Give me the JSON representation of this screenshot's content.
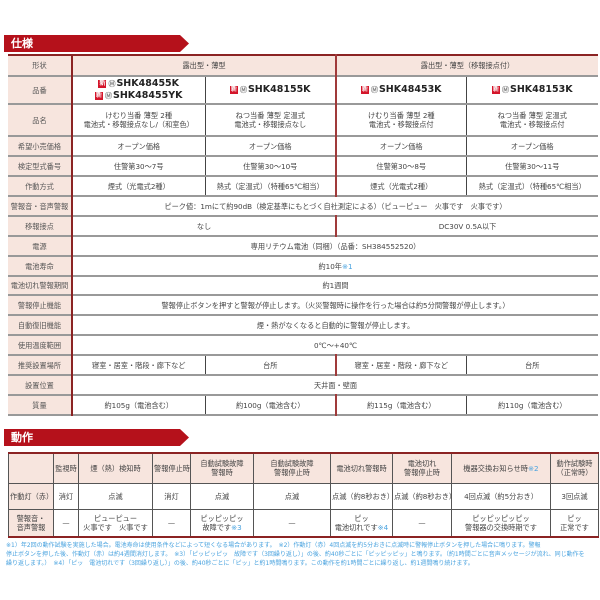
{
  "spec": {
    "title": "仕様",
    "badge": "新",
    "mark": "Ⓜ",
    "rows": [
      {
        "label": "形状",
        "hdr": true,
        "cells": [
          {
            "lines": [
              "露出型・薄型"
            ],
            "span": 2
          },
          {
            "lines": [
              "露出型・薄型（移報接点付）"
            ],
            "span": 2
          }
        ]
      },
      {
        "label": "品番",
        "model": true,
        "cells": [
          {
            "lines": [
              "SHK48455K",
              "SHK48455YK"
            ]
          },
          {
            "lines": [
              "SHK48155K"
            ]
          },
          {
            "lines": [
              "SHK48453K"
            ]
          },
          {
            "lines": [
              "SHK48153K"
            ]
          }
        ]
      },
      {
        "label": "品名",
        "cells": [
          {
            "lines": [
              "けむり当番 薄型 2種",
              "電池式・移報接点なし/（和室色）"
            ]
          },
          {
            "lines": [
              "ねつ当番 薄型 定温式",
              "電池式・移報接点なし"
            ]
          },
          {
            "lines": [
              "けむり当番 薄型 2種",
              "電池式・移報接点付"
            ]
          },
          {
            "lines": [
              "ねつ当番 薄型 定温式",
              "電池式・移報接点付"
            ]
          }
        ]
      },
      {
        "label": "希望小売価格",
        "cells": [
          {
            "lines": [
              "オープン価格"
            ]
          },
          {
            "lines": [
              "オープン価格"
            ]
          },
          {
            "lines": [
              "オープン価格"
            ]
          },
          {
            "lines": [
              "オープン価格"
            ]
          }
        ]
      },
      {
        "label": "検定型式番号",
        "cells": [
          {
            "lines": [
              "住警第30～7号"
            ]
          },
          {
            "lines": [
              "住警第30～10号"
            ]
          },
          {
            "lines": [
              "住警第30～8号"
            ]
          },
          {
            "lines": [
              "住警第30～11号"
            ]
          }
        ]
      },
      {
        "label": "作動方式",
        "cells": [
          {
            "lines": [
              "煙式（光電式2種）"
            ]
          },
          {
            "lines": [
              "熱式（定温式）（特種65℃相当）"
            ]
          },
          {
            "lines": [
              "煙式（光電式2種）"
            ]
          },
          {
            "lines": [
              "熱式（定温式）（特種65℃相当）"
            ]
          }
        ]
      },
      {
        "label": "警報音・音声警報",
        "cells": [
          {
            "lines": [
              "ピーク値：1mにて約90dB（検定基準にもとづく自社測定による）（ピューピュー　火事です　火事です）"
            ],
            "span": 4
          }
        ]
      },
      {
        "label": "移報接点",
        "cells": [
          {
            "lines": [
              "なし"
            ],
            "span": 2
          },
          {
            "lines": [
              "DC30V 0.5A以下"
            ],
            "span": 2
          }
        ]
      },
      {
        "label": "電源",
        "cells": [
          {
            "lines": [
              "専用リチウム電池（同梱）（品番：SH384552520）"
            ],
            "span": 4
          }
        ]
      },
      {
        "label": "電池寿命",
        "cells": [
          {
            "lines": [
              "約10年"
            ],
            "note": "※1",
            "span": 4
          }
        ]
      },
      {
        "label": "電池切れ警報期間",
        "cells": [
          {
            "lines": [
              "約1週間"
            ],
            "span": 4
          }
        ]
      },
      {
        "label": "警報停止機能",
        "cells": [
          {
            "lines": [
              "警報停止ボタンを押すと警報が停止します。（火災警報時に操作を行った場合は約5分間警報が停止します。）"
            ],
            "span": 4
          }
        ]
      },
      {
        "label": "自動復旧機能",
        "cells": [
          {
            "lines": [
              "煙・熱がなくなると自動的に警報が停止します。"
            ],
            "span": 4
          }
        ]
      },
      {
        "label": "使用温度範囲",
        "cells": [
          {
            "lines": [
              "0℃～+40℃"
            ],
            "span": 4
          }
        ]
      },
      {
        "label": "推奨設置場所",
        "cells": [
          {
            "lines": [
              "寝室・居室・階段・廊下など"
            ]
          },
          {
            "lines": [
              "台所"
            ]
          },
          {
            "lines": [
              "寝室・居室・階段・廊下など"
            ]
          },
          {
            "lines": [
              "台所"
            ]
          }
        ]
      },
      {
        "label": "設置位置",
        "cells": [
          {
            "lines": [
              "天井面・壁面"
            ],
            "span": 4
          }
        ]
      },
      {
        "label": "質量",
        "cells": [
          {
            "lines": [
              "約105g（電池含む）"
            ]
          },
          {
            "lines": [
              "約100g（電池含む）"
            ]
          },
          {
            "lines": [
              "約115g（電池含む）"
            ]
          },
          {
            "lines": [
              "約110g（電池含む）"
            ]
          }
        ]
      }
    ]
  },
  "operation": {
    "title": "動作",
    "headers": [
      {
        "lines": [
          "監視時"
        ]
      },
      {
        "lines": [
          "煙（熱）検知時"
        ]
      },
      {
        "lines": [
          "警報停止時"
        ]
      },
      {
        "lines": [
          "自動試験故障",
          "警報時"
        ]
      },
      {
        "lines": [
          "自動試験故障",
          "警報停止時"
        ]
      },
      {
        "lines": [
          "電池切れ警報時"
        ]
      },
      {
        "lines": [
          "電池切れ",
          "警報停止時"
        ]
      },
      {
        "lines": [
          "機器交換お知らせ時"
        ],
        "note": "※2"
      },
      {
        "lines": [
          "動作試験時",
          "（正常時）"
        ]
      }
    ],
    "rows": [
      {
        "label": [
          "作動灯（赤）"
        ],
        "cells": [
          {
            "lines": [
              "消灯"
            ]
          },
          {
            "lines": [
              "点滅"
            ]
          },
          {
            "lines": [
              "消灯"
            ]
          },
          {
            "lines": [
              "点滅"
            ]
          },
          {
            "lines": [
              "点滅"
            ]
          },
          {
            "lines": [
              "点滅（約8秒おき）"
            ]
          },
          {
            "lines": [
              "点滅（約8秒おき）"
            ]
          },
          {
            "lines": [
              "4回点滅（約5分おき）"
            ]
          },
          {
            "lines": [
              "3回点滅"
            ]
          }
        ]
      },
      {
        "label": [
          "警報音・",
          "音声警報"
        ],
        "cells": [
          {
            "lines": [
              "—"
            ]
          },
          {
            "lines": [
              "ピューピュー",
              "火事です　火事です"
            ]
          },
          {
            "lines": [
              "—"
            ]
          },
          {
            "lines": [
              "ピッピッピッ",
              "故障です"
            ],
            "note": "※3"
          },
          {
            "lines": [
              "—"
            ]
          },
          {
            "lines": [
              "ピッ",
              "電池切れです"
            ],
            "note": "※4"
          },
          {
            "lines": [
              "—"
            ]
          },
          {
            "lines": [
              "ピッピッピッピッ",
              "警報器の交換時期です"
            ]
          },
          {
            "lines": [
              "ピッ",
              "正常です"
            ]
          }
        ]
      }
    ]
  },
  "footnotes": [
    "※1）年2回の動作試験を実施した場合。電池寿命は使用条件などによって短くなる場合があります。　※2）作動灯（赤）4回点滅を約5分おきに点滅時に警報停止ボタンを押した場合に鳴ります。警報",
    "停止ボタンを押した後、作動灯（赤）は約4週間消灯します。　※3）「ピッピッピッ　故障です（3回繰り返し）」の後、約40秒ごとに「ピッピッピッ」と鳴ります。（約1時間ごとに音声メッセージが流れ、同じ動作を",
    "繰り返します。）　※4）「ピッ　電池切れです（3回繰り返し）」の後、約40秒ごとに「ピッ」と約1時間鳴ります。この動作を約1時間ごとに繰り返し、約1週間鳴り続けます。"
  ],
  "colors": {
    "accent": "#b5111b",
    "label_bg": "#f7e5de",
    "note": "#4aa3df"
  }
}
